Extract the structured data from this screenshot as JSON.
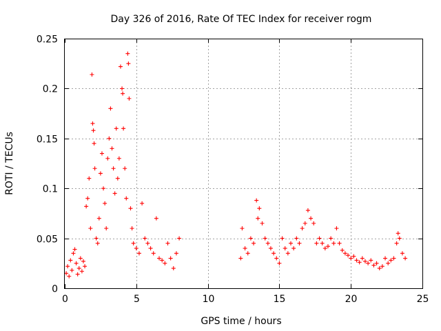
{
  "chart_data": {
    "type": "scatter",
    "title": "Day 326 of 2016, Rate Of TEC Index for receiver rogm",
    "xlabel": "GPS time / hours",
    "ylabel": "ROTI / TECUs",
    "xlim": [
      0,
      25
    ],
    "ylim": [
      0,
      0.25
    ],
    "x_ticks": [
      0,
      5,
      10,
      15,
      20,
      25
    ],
    "x_tick_labels": [
      "0",
      "5",
      "10",
      "15",
      "20",
      "25"
    ],
    "y_ticks": [
      0,
      0.05,
      0.1,
      0.15,
      0.2,
      0.25
    ],
    "y_tick_labels": [
      "0",
      "0.05",
      "0.1",
      "0.15",
      "0.2",
      "0.25"
    ],
    "grid": true,
    "marker": "+",
    "color": "#ff0000",
    "series": [
      {
        "name": "ROTI",
        "points": [
          [
            0.1,
            0.015
          ],
          [
            0.2,
            0.022
          ],
          [
            0.3,
            0.012
          ],
          [
            0.4,
            0.028
          ],
          [
            0.5,
            0.018
          ],
          [
            0.6,
            0.035
          ],
          [
            0.7,
            0.039
          ],
          [
            0.8,
            0.025
          ],
          [
            0.9,
            0.014
          ],
          [
            1.0,
            0.02
          ],
          [
            1.1,
            0.03
          ],
          [
            1.2,
            0.017
          ],
          [
            1.3,
            0.027
          ],
          [
            1.4,
            0.022
          ],
          [
            1.5,
            0.082
          ],
          [
            1.6,
            0.09
          ],
          [
            1.7,
            0.11
          ],
          [
            1.8,
            0.06
          ],
          [
            1.9,
            0.214
          ],
          [
            1.95,
            0.165
          ],
          [
            2.0,
            0.158
          ],
          [
            2.05,
            0.145
          ],
          [
            2.1,
            0.12
          ],
          [
            2.2,
            0.05
          ],
          [
            2.3,
            0.045
          ],
          [
            2.4,
            0.07
          ],
          [
            2.5,
            0.115
          ],
          [
            2.6,
            0.135
          ],
          [
            2.7,
            0.1
          ],
          [
            2.8,
            0.085
          ],
          [
            2.9,
            0.06
          ],
          [
            3.0,
            0.13
          ],
          [
            3.1,
            0.15
          ],
          [
            3.2,
            0.18
          ],
          [
            3.3,
            0.14
          ],
          [
            3.4,
            0.12
          ],
          [
            3.5,
            0.095
          ],
          [
            3.6,
            0.16
          ],
          [
            3.7,
            0.11
          ],
          [
            3.8,
            0.13
          ],
          [
            3.9,
            0.222
          ],
          [
            4.0,
            0.2
          ],
          [
            4.05,
            0.195
          ],
          [
            4.1,
            0.16
          ],
          [
            4.2,
            0.12
          ],
          [
            4.3,
            0.09
          ],
          [
            4.4,
            0.235
          ],
          [
            4.45,
            0.225
          ],
          [
            4.5,
            0.19
          ],
          [
            4.6,
            0.08
          ],
          [
            4.7,
            0.06
          ],
          [
            4.8,
            0.045
          ],
          [
            5.0,
            0.04
          ],
          [
            5.2,
            0.035
          ],
          [
            5.4,
            0.085
          ],
          [
            5.6,
            0.05
          ],
          [
            5.8,
            0.045
          ],
          [
            6.0,
            0.04
          ],
          [
            6.2,
            0.035
          ],
          [
            6.4,
            0.07
          ],
          [
            6.6,
            0.03
          ],
          [
            6.8,
            0.028
          ],
          [
            7.0,
            0.025
          ],
          [
            7.2,
            0.045
          ],
          [
            7.4,
            0.03
          ],
          [
            7.6,
            0.02
          ],
          [
            7.8,
            0.035
          ],
          [
            8.0,
            0.05
          ],
          [
            12.3,
            0.03
          ],
          [
            12.4,
            0.06
          ],
          [
            12.6,
            0.04
          ],
          [
            12.8,
            0.035
          ],
          [
            13.0,
            0.05
          ],
          [
            13.2,
            0.045
          ],
          [
            13.4,
            0.088
          ],
          [
            13.5,
            0.07
          ],
          [
            13.6,
            0.08
          ],
          [
            13.8,
            0.065
          ],
          [
            14.0,
            0.05
          ],
          [
            14.2,
            0.045
          ],
          [
            14.4,
            0.04
          ],
          [
            14.6,
            0.035
          ],
          [
            14.8,
            0.03
          ],
          [
            15.0,
            0.025
          ],
          [
            15.2,
            0.05
          ],
          [
            15.4,
            0.04
          ],
          [
            15.6,
            0.035
          ],
          [
            15.8,
            0.045
          ],
          [
            16.0,
            0.04
          ],
          [
            16.2,
            0.05
          ],
          [
            16.4,
            0.045
          ],
          [
            16.6,
            0.06
          ],
          [
            16.8,
            0.065
          ],
          [
            17.0,
            0.078
          ],
          [
            17.2,
            0.07
          ],
          [
            17.4,
            0.065
          ],
          [
            17.6,
            0.045
          ],
          [
            17.8,
            0.05
          ],
          [
            18.0,
            0.045
          ],
          [
            18.2,
            0.04
          ],
          [
            18.4,
            0.042
          ],
          [
            18.6,
            0.05
          ],
          [
            18.8,
            0.045
          ],
          [
            19.0,
            0.06
          ],
          [
            19.2,
            0.045
          ],
          [
            19.4,
            0.038
          ],
          [
            19.6,
            0.035
          ],
          [
            19.8,
            0.033
          ],
          [
            20.0,
            0.03
          ],
          [
            20.2,
            0.032
          ],
          [
            20.4,
            0.028
          ],
          [
            20.6,
            0.026
          ],
          [
            20.8,
            0.03
          ],
          [
            21.0,
            0.027
          ],
          [
            21.2,
            0.025
          ],
          [
            21.4,
            0.028
          ],
          [
            21.6,
            0.023
          ],
          [
            21.8,
            0.025
          ],
          [
            22.0,
            0.02
          ],
          [
            22.2,
            0.022
          ],
          [
            22.4,
            0.03
          ],
          [
            22.6,
            0.025
          ],
          [
            22.8,
            0.028
          ],
          [
            23.0,
            0.03
          ],
          [
            23.2,
            0.045
          ],
          [
            23.3,
            0.055
          ],
          [
            23.4,
            0.05
          ],
          [
            23.6,
            0.035
          ],
          [
            23.8,
            0.03
          ]
        ]
      }
    ]
  }
}
